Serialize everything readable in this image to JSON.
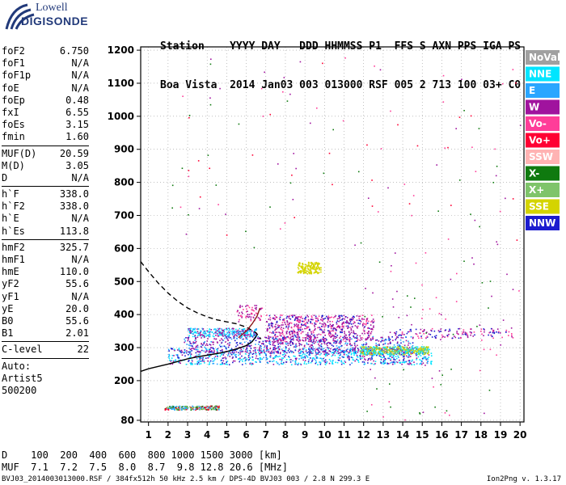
{
  "logo": {
    "top": "Lowell",
    "main": "DIGISONDE"
  },
  "header": {
    "line1": "Station    YYYY DAY   DDD HHMMSS P1  FFS S AXN PPS IGA PS",
    "line2": "Boa Vista  2014 Jan03 003 013000 RSF 005 2 713 100 03+ C0"
  },
  "params": [
    {
      "k": "foF2",
      "v": "6.750"
    },
    {
      "k": "foF1",
      "v": "N/A"
    },
    {
      "k": "foF1p",
      "v": "N/A"
    },
    {
      "k": "foE",
      "v": "N/A"
    },
    {
      "k": "foEp",
      "v": "0.48"
    },
    {
      "k": "fxI",
      "v": "6.55"
    },
    {
      "k": "foEs",
      "v": "3.15"
    },
    {
      "k": "fmin",
      "v": "1.60"
    },
    {
      "sep": true
    },
    {
      "k": "MUF(D)",
      "v": "20.59"
    },
    {
      "k": "M(D)",
      "v": "3.05"
    },
    {
      "k": "D",
      "v": "N/A"
    },
    {
      "sep": true
    },
    {
      "k": "h`F",
      "v": "338.0"
    },
    {
      "k": "h`F2",
      "v": "338.0"
    },
    {
      "k": "h`E",
      "v": "N/A"
    },
    {
      "k": "h`Es",
      "v": "113.8"
    },
    {
      "sep": true
    },
    {
      "k": "hmF2",
      "v": "325.7"
    },
    {
      "k": "hmF1",
      "v": "N/A"
    },
    {
      "k": "hmE",
      "v": "110.0"
    },
    {
      "k": "yF2",
      "v": "55.6"
    },
    {
      "k": "yF1",
      "v": "N/A"
    },
    {
      "k": "yE",
      "v": "20.0"
    },
    {
      "k": "B0",
      "v": "55.6"
    },
    {
      "k": "B1",
      "v": "2.01"
    },
    {
      "sep": true
    },
    {
      "k": "C-level",
      "v": "22"
    },
    {
      "sep": true
    },
    {
      "k": "Auto:",
      "v": ""
    },
    {
      "k": "Artist5",
      "v": ""
    },
    {
      "k": "500200",
      "v": ""
    }
  ],
  "footer": {
    "d_line": "D    100  200  400  600  800 1000 1500 3000 [km]",
    "muf_line": "MUF  7.1  7.2  7.5  8.0  8.7  9.8 12.8 20.6 [MHz]",
    "file_line": "BVJ03_2014003013000.RSF / 384fx512h 50 kHz 2.5 km / DPS-4D BVJ03 003 / 2.8 N 299.3 E",
    "version": "Ion2Png v. 1.3.17"
  },
  "legend": [
    {
      "label": "NoVal",
      "color": "#a0a0a0"
    },
    {
      "label": "NNE",
      "color": "#00e5ff"
    },
    {
      "label": "E",
      "color": "#2aa6ff"
    },
    {
      "label": "W",
      "color": "#a0139e"
    },
    {
      "label": "Vo-",
      "color": "#ff3d99"
    },
    {
      "label": "Vo+",
      "color": "#ff0033"
    },
    {
      "label": "SSW",
      "color": "#ffb3b3"
    },
    {
      "label": "X-",
      "color": "#0f7a0f"
    },
    {
      "label": "X+",
      "color": "#7fc46a"
    },
    {
      "label": "SSE",
      "color": "#d4d400"
    },
    {
      "label": "NNW",
      "color": "#1c1ccf"
    }
  ],
  "chart_data": {
    "type": "scatter",
    "title": "",
    "xlabel": "",
    "ylabel": "",
    "xlim": [
      0.6,
      20.2
    ],
    "ylim": [
      75,
      1210
    ],
    "x_ticks": [
      1,
      2,
      3,
      4,
      5,
      6,
      7,
      8,
      9,
      10,
      11,
      12,
      13,
      14,
      15,
      16,
      17,
      18,
      19,
      20
    ],
    "y_ticks": [
      80,
      200,
      300,
      400,
      500,
      600,
      700,
      800,
      900,
      1000,
      1100,
      1200
    ],
    "grid": "dotted",
    "traces": [
      {
        "name": "traced-O-trace",
        "color": "#000000",
        "dash": false,
        "x": [
          0.6,
          1,
          1.5,
          2,
          2.5,
          3,
          3.5,
          4,
          4.5,
          5,
          5.5,
          6,
          6.3,
          6.55
        ],
        "y": [
          228,
          236,
          243,
          250,
          258,
          266,
          272,
          277,
          282,
          288,
          296,
          306,
          318,
          338
        ]
      },
      {
        "name": "model-profile",
        "color": "#000000",
        "dash": true,
        "x": [
          0.6,
          1,
          1.5,
          2,
          2.5,
          3,
          3.5,
          4,
          4.5,
          5,
          5.5,
          6,
          6.5,
          6.75
        ],
        "y": [
          560,
          530,
          495,
          465,
          440,
          420,
          405,
          393,
          384,
          378,
          372,
          362,
          345,
          326
        ]
      },
      {
        "name": "hook-trace",
        "color": "#8b1a1a",
        "dash": false,
        "x": [
          5.6,
          6.0,
          6.3,
          6.55,
          6.7
        ],
        "y": [
          330,
          350,
          372,
          395,
          420
        ]
      }
    ]
  }
}
